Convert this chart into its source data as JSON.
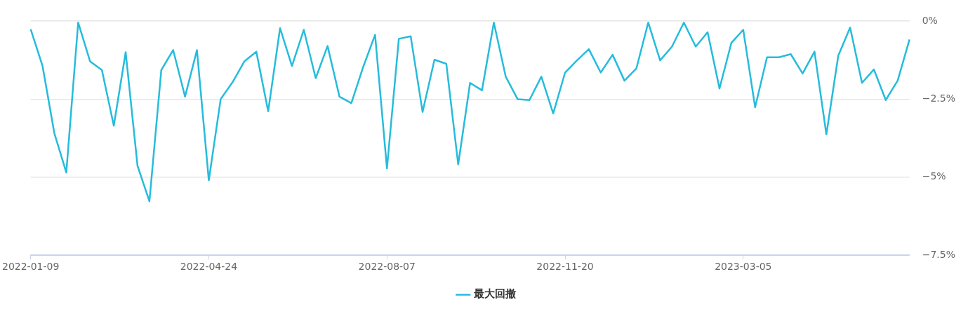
{
  "chart_data": {
    "type": "line",
    "categories": [
      "2022-01-09",
      null,
      null,
      null,
      null,
      null,
      null,
      null,
      null,
      null,
      null,
      null,
      null,
      null,
      null,
      "2022-04-24",
      null,
      null,
      null,
      null,
      null,
      null,
      null,
      null,
      null,
      null,
      null,
      null,
      null,
      null,
      "2022-08-07",
      null,
      null,
      null,
      null,
      null,
      null,
      null,
      null,
      null,
      null,
      null,
      null,
      null,
      null,
      "2022-11-20",
      null,
      null,
      null,
      null,
      null,
      null,
      null,
      null,
      null,
      null,
      null,
      null,
      null,
      null,
      "2023-03-05",
      null,
      null,
      null,
      null,
      null,
      null,
      null,
      null,
      null,
      null,
      null,
      null,
      null,
      null
    ],
    "series": [
      {
        "name": "最大回撤",
        "color": "#25bcdc",
        "values": [
          -0.26,
          -1.44,
          -3.6,
          -4.85,
          -0.05,
          -1.29,
          -1.57,
          -3.35,
          -1.0,
          -4.64,
          -5.77,
          -1.57,
          -0.93,
          -2.42,
          -0.93,
          -5.1,
          -2.5,
          -1.96,
          -1.29,
          -0.98,
          -2.89,
          -0.23,
          -1.44,
          -0.28,
          -1.83,
          -0.8,
          -2.42,
          -2.63,
          -1.47,
          -0.44,
          -4.72,
          -0.57,
          -0.49,
          -2.91,
          -1.24,
          -1.37,
          -4.59,
          -1.98,
          -2.22,
          -0.05,
          -1.78,
          -2.5,
          -2.53,
          -1.78,
          -2.96,
          -1.65,
          -1.26,
          -0.9,
          -1.65,
          -1.08,
          -1.91,
          -1.52,
          -0.05,
          -1.26,
          -0.82,
          -0.05,
          -0.82,
          -0.36,
          -2.16,
          -0.7,
          -0.28,
          -2.76,
          -1.16,
          -1.16,
          -1.06,
          -1.68,
          -0.98,
          -3.63,
          -1.11,
          -0.21,
          -1.98,
          -1.55,
          -2.53,
          -1.91,
          -0.59
        ]
      }
    ],
    "ylim": [
      -7.5,
      0
    ],
    "yticks": [
      {
        "value": 0,
        "label": "0%"
      },
      {
        "value": -2.5,
        "label": "−2.5%"
      },
      {
        "value": -5,
        "label": "−5%"
      },
      {
        "value": -7.5,
        "label": "−7.5%"
      }
    ],
    "grid": "y",
    "legend": "bottom",
    "marker": "none",
    "line_style": "solid"
  }
}
